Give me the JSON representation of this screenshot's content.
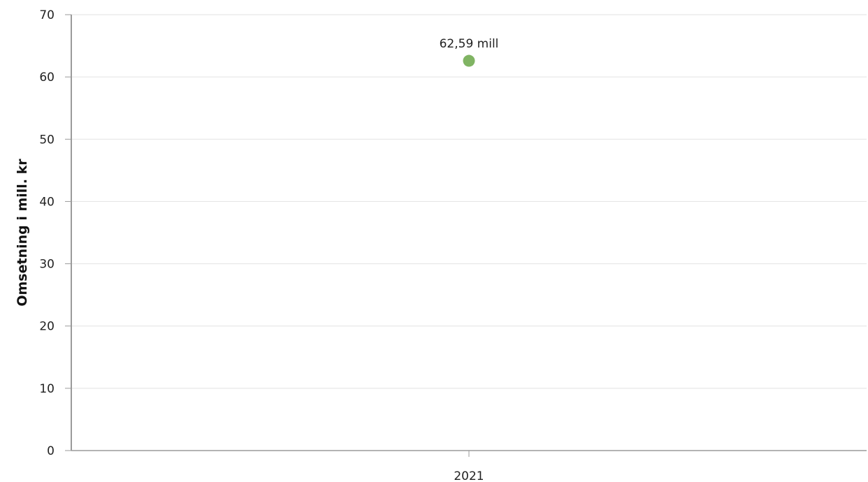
{
  "chart_data": {
    "type": "scatter",
    "title": "",
    "xlabel": "",
    "ylabel": "Omsetning i mill. kr",
    "categories": [
      "2021"
    ],
    "series": [
      {
        "values": [
          62.59
        ],
        "data_labels": [
          "62,59 mill"
        ],
        "color": "#80b463"
      }
    ],
    "ylim": [
      0,
      70
    ],
    "yticks": [
      0,
      10,
      20,
      30,
      40,
      50,
      60,
      70
    ],
    "ytick_labels": [
      "0",
      "10",
      "20",
      "30",
      "40",
      "50",
      "60",
      "70"
    ],
    "grid": true,
    "legend": "none"
  },
  "colors": {
    "gridline": "#e2e2e2",
    "axis": "#9a9a9a",
    "point": "#80b463"
  }
}
